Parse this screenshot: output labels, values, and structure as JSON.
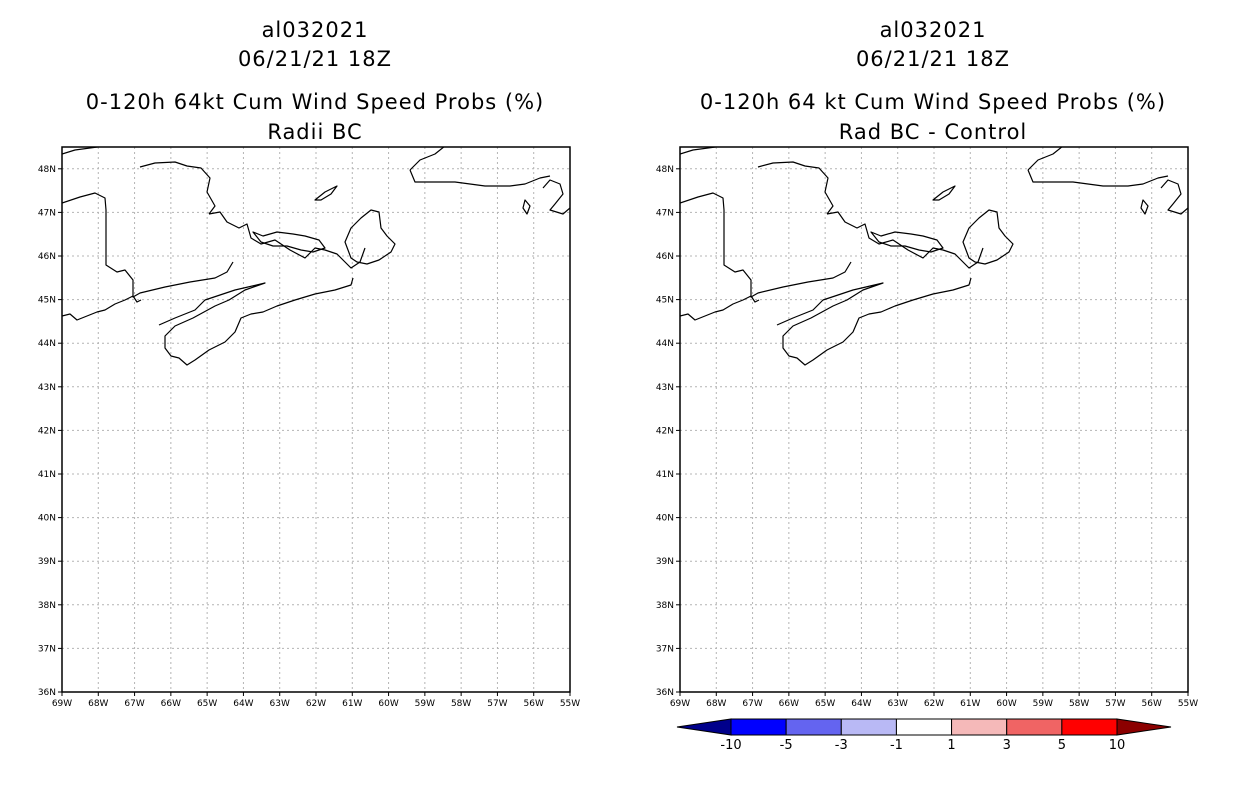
{
  "panels": [
    {
      "storm_id": "al032021",
      "datetime": "06/21/21 18Z",
      "title": "0-120h 64kt Cum Wind Speed Probs (%)",
      "subtitle": "Radii BC"
    },
    {
      "storm_id": "al032021",
      "datetime": "06/21/21 18Z",
      "title": "0-120h 64 kt Cum Wind Speed Probs (%)",
      "subtitle": "Rad BC - Control"
    }
  ],
  "map": {
    "lon_range": [
      -69,
      -55
    ],
    "lat_range": [
      36,
      48.5
    ],
    "lon_labels": [
      "69W",
      "68W",
      "67W",
      "66W",
      "65W",
      "64W",
      "63W",
      "62W",
      "61W",
      "60W",
      "59W",
      "58W",
      "57W",
      "56W",
      "55W"
    ],
    "lat_labels": [
      "36N",
      "37N",
      "38N",
      "39N",
      "40N",
      "41N",
      "42N",
      "43N",
      "44N",
      "45N",
      "46N",
      "47N",
      "48N"
    ],
    "gridline_color": "#b4b4b4",
    "coast_color": "#000000"
  },
  "colorbar": {
    "labels": [
      "-10",
      "-5",
      "-3",
      "-1",
      "1",
      "3",
      "5",
      "10"
    ],
    "colors": [
      "#00008b",
      "#0000ff",
      "#6464f0",
      "#b9b9f5",
      "#ffffff",
      "#f5b9b9",
      "#f06464",
      "#ff0000",
      "#8b0000"
    ]
  }
}
